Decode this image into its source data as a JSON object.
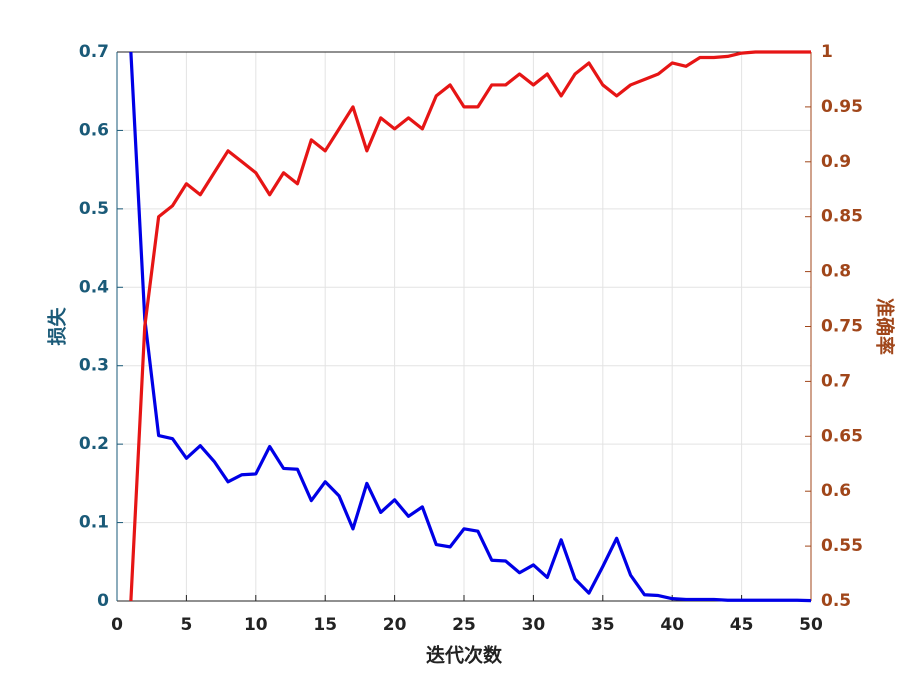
{
  "chart_data": {
    "type": "line",
    "x_label": "迭代次数",
    "y_label": "损失",
    "y2_label": "准确率",
    "x": [
      1,
      2,
      3,
      4,
      5,
      6,
      7,
      8,
      9,
      10,
      11,
      12,
      13,
      14,
      15,
      16,
      17,
      18,
      19,
      20,
      21,
      22,
      23,
      24,
      25,
      26,
      27,
      28,
      29,
      30,
      31,
      32,
      33,
      34,
      35,
      36,
      37,
      38,
      39,
      40,
      41,
      42,
      43,
      44,
      45,
      46,
      47,
      48,
      49,
      50
    ],
    "series": [
      {
        "name": "损失",
        "color": "#0000e6",
        "axis": "y",
        "values": [
          0.7,
          0.36,
          0.211,
          0.207,
          0.182,
          0.198,
          0.178,
          0.152,
          0.161,
          0.162,
          0.197,
          0.169,
          0.168,
          0.128,
          0.152,
          0.134,
          0.092,
          0.15,
          0.113,
          0.129,
          0.108,
          0.12,
          0.072,
          0.069,
          0.092,
          0.089,
          0.052,
          0.051,
          0.036,
          0.046,
          0.03,
          0.078,
          0.028,
          0.01,
          0.044,
          0.08,
          0.033,
          0.008,
          0.007,
          0.003,
          0.002,
          0.002,
          0.002,
          0.001,
          0.001,
          0.001,
          0.001,
          0.001,
          0.001,
          0.0005
        ]
      },
      {
        "name": "准确率",
        "color": "#e61515",
        "axis": "y2",
        "values": [
          0.5,
          0.75,
          0.85,
          0.86,
          0.88,
          0.87,
          0.89,
          0.91,
          0.9,
          0.89,
          0.87,
          0.89,
          0.88,
          0.92,
          0.91,
          0.93,
          0.95,
          0.91,
          0.94,
          0.93,
          0.94,
          0.93,
          0.96,
          0.97,
          0.95,
          0.95,
          0.97,
          0.97,
          0.98,
          0.97,
          0.98,
          0.96,
          0.98,
          0.99,
          0.97,
          0.96,
          0.97,
          0.975,
          0.98,
          0.99,
          0.987,
          0.995,
          0.995,
          0.996,
          0.999,
          1,
          1,
          1,
          1,
          1
        ]
      }
    ],
    "xlim": [
      0,
      50
    ],
    "xticks": [
      0,
      5,
      10,
      15,
      20,
      25,
      30,
      35,
      40,
      45,
      50
    ],
    "ylim": [
      0,
      0.7
    ],
    "yticks": [
      0,
      0.1,
      0.2,
      0.3,
      0.4,
      0.5,
      0.6,
      0.7
    ],
    "y2lim": [
      0.5,
      1
    ],
    "y2ticks": [
      0.5,
      0.55,
      0.6,
      0.65,
      0.7,
      0.75,
      0.8,
      0.85,
      0.9,
      0.95,
      1
    ],
    "y_color": "#1a5a78",
    "y2_color": "#a0461a",
    "grid": true
  }
}
